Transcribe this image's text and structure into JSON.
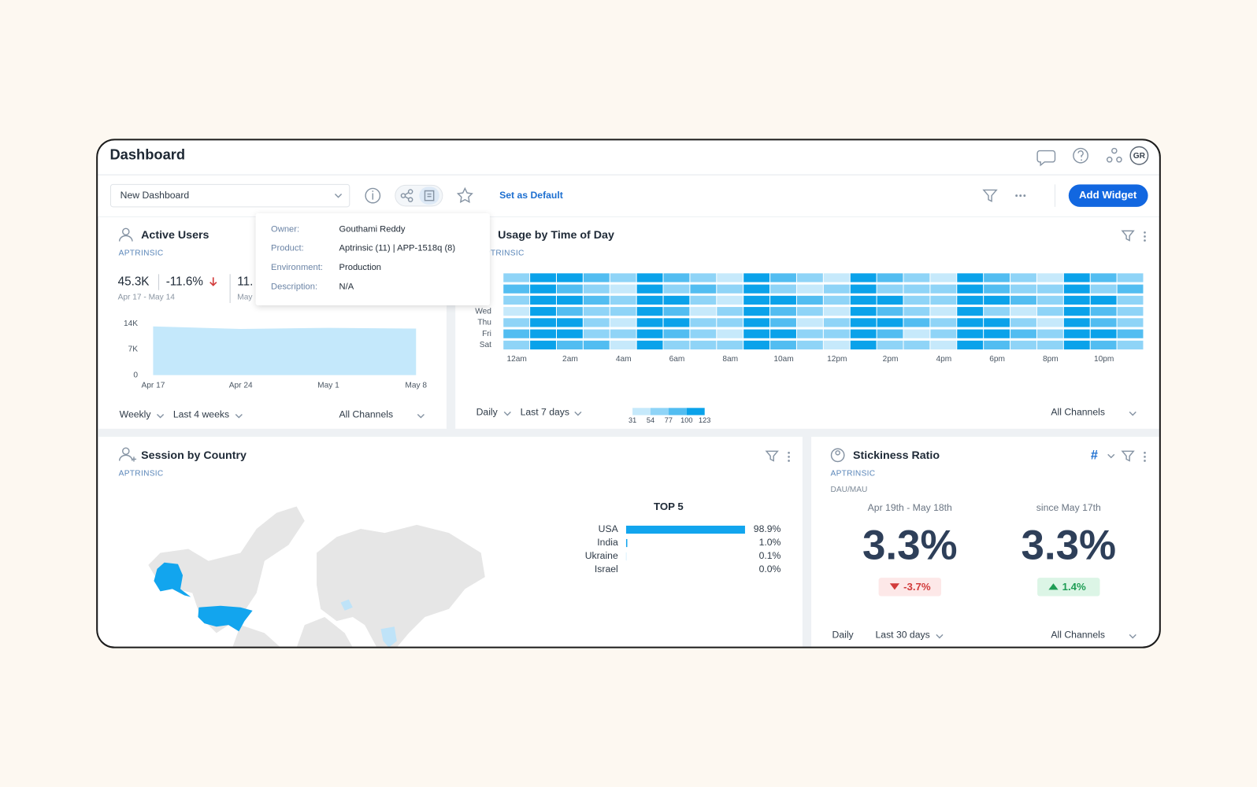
{
  "header": {
    "title": "Dashboard",
    "avatar": "GR"
  },
  "toolbar": {
    "dashboard_select": "New Dashboard",
    "set_default": "Set as Default",
    "add_widget": "Add Widget"
  },
  "tooltip": {
    "rows": [
      {
        "label": "Owner:",
        "value": "Gouthami Reddy"
      },
      {
        "label": "Product:",
        "value": "Aptrinsic (11)  |  APP-1518q (8)"
      },
      {
        "label": "Environment:",
        "value": "Production"
      },
      {
        "label": "Description:",
        "value": "N/A"
      }
    ]
  },
  "active_users": {
    "title": "Active Users",
    "source": "APTRINSIC",
    "kpis": [
      {
        "value": "45.3K",
        "change": "-11.6%",
        "range": "Apr 17 - May 14"
      },
      {
        "value": "11.",
        "range": "May"
      }
    ],
    "chart_data": {
      "type": "area",
      "categories": [
        "Apr 17",
        "Apr 24",
        "May 1",
        "May 8"
      ],
      "values": [
        13300,
        12600,
        12900,
        12700
      ],
      "color": "#c4e8fb",
      "ylim": [
        0,
        14000
      ],
      "yticks": [
        0,
        {
          "value": 7000,
          "label": "7K"
        },
        {
          "value": 14000,
          "label": "14K"
        }
      ]
    },
    "filters": [
      "Weekly",
      "Last 4 weeks",
      "All Channels"
    ]
  },
  "usage": {
    "title": "Usage by Time of Day",
    "source": "APTRINSIC",
    "chart_data": {
      "type": "heatmap",
      "x": [
        "12am",
        null,
        "2am",
        null,
        "4am",
        null,
        "6am",
        null,
        "8am",
        null,
        "10am",
        null,
        "12pm",
        null,
        "2pm",
        null,
        "4pm",
        null,
        "6pm",
        null,
        "8pm",
        null,
        "10pm",
        null
      ],
      "y": [
        null,
        null,
        null,
        "Wed",
        "Thu",
        "Fri",
        "Sat"
      ],
      "values": [
        [
          54,
          123,
          100,
          77,
          54,
          123,
          77,
          54,
          31,
          123,
          77,
          54,
          31,
          123,
          77,
          54,
          31,
          123,
          77,
          54,
          31,
          123,
          77,
          54
        ],
        [
          77,
          123,
          77,
          54,
          31,
          123,
          54,
          77,
          54,
          123,
          54,
          31,
          54,
          123,
          54,
          54,
          54,
          123,
          77,
          54,
          54,
          123,
          54,
          77
        ],
        [
          54,
          123,
          123,
          77,
          54,
          123,
          100,
          54,
          31,
          123,
          123,
          77,
          54,
          123,
          100,
          54,
          54,
          123,
          100,
          77,
          54,
          123,
          100,
          54
        ],
        [
          31,
          123,
          77,
          54,
          54,
          123,
          77,
          31,
          54,
          123,
          77,
          54,
          31,
          123,
          77,
          54,
          31,
          123,
          54,
          31,
          54,
          123,
          77,
          54
        ],
        [
          54,
          123,
          100,
          54,
          31,
          123,
          100,
          54,
          54,
          123,
          77,
          31,
          54,
          123,
          100,
          77,
          54,
          123,
          100,
          54,
          31,
          123,
          77,
          54
        ],
        [
          77,
          123,
          123,
          54,
          54,
          123,
          77,
          54,
          31,
          123,
          100,
          54,
          54,
          123,
          77,
          31,
          54,
          123,
          123,
          77,
          54,
          123,
          100,
          77
        ],
        [
          54,
          123,
          77,
          77,
          31,
          123,
          54,
          54,
          54,
          123,
          77,
          54,
          31,
          123,
          54,
          54,
          31,
          123,
          77,
          54,
          54,
          123,
          77,
          54
        ]
      ],
      "colors": [
        "#c6e9fb",
        "#8fd4f7",
        "#52bdf1",
        "#0aa2ea"
      ],
      "legend_ticks": [
        31,
        54,
        77,
        100,
        123
      ]
    },
    "filters": [
      "Daily",
      "Last 7 days",
      "All Channels"
    ]
  },
  "session_by_country": {
    "title": "Session by Country",
    "source": "APTRINSIC",
    "chart_data": {
      "type": "hbar",
      "title": "TOP 5",
      "categories": [
        "USA",
        "India",
        "Ukraine",
        "Israel"
      ],
      "values": [
        98.9,
        1.0,
        0.1,
        0.0
      ],
      "value_labels": [
        "98.9%",
        "1.0%",
        "0.1%",
        "0.0%"
      ],
      "color": "#12a5ee",
      "xlim": [
        0,
        100
      ]
    }
  },
  "stickiness": {
    "title": "Stickiness Ratio",
    "source": "APTRINSIC",
    "metric": "DAU/MAU",
    "format": "#",
    "periods": [
      {
        "range": "Apr 19th - May 18th",
        "value": "3.3%",
        "change": "-3.7%"
      },
      {
        "range": "since May 17th",
        "value": "3.3%",
        "change": "1.4%"
      }
    ],
    "filters": [
      "Daily",
      "Last 30 days",
      "All Channels"
    ]
  }
}
